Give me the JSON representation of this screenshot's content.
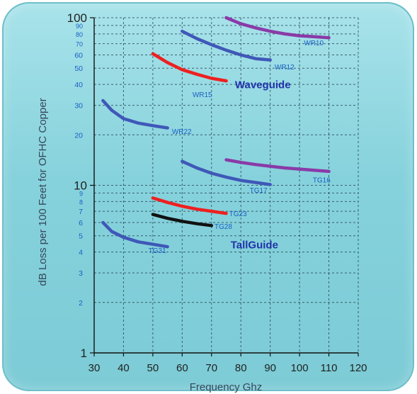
{
  "chart_data": {
    "type": "line",
    "title": "",
    "xlabel": "Frequency Ghz",
    "ylabel": "dB Loss per 100 Feet for OFHC Copper",
    "xlim": [
      30,
      120
    ],
    "ylim": [
      1,
      100
    ],
    "yscale": "log",
    "grid": true,
    "x_ticks": [
      "30",
      "40",
      "50",
      "60",
      "70",
      "80",
      "90",
      "100",
      "110",
      "120"
    ],
    "y_major_ticks": [
      "1",
      "10",
      "100"
    ],
    "y_minor_ticks": [
      "2",
      "3",
      "4",
      "5",
      "6",
      "7",
      "8",
      "9",
      "20",
      "30",
      "40",
      "50",
      "60",
      "70",
      "80",
      "90"
    ],
    "annotations": [
      "Waveguide",
      "TallGuide"
    ],
    "colors": {
      "blue": "#3f58b8",
      "red": "#ee2020",
      "purple": "#8a3aa8",
      "black": "#111111",
      "label_blue": "#1a5fc4",
      "section_label": "#2233aa",
      "grid": "#1e3a4a"
    },
    "series": [
      {
        "name": "WR10",
        "color": "purple",
        "x": [
          75,
          80,
          85,
          90,
          95,
          100,
          105,
          110
        ],
        "y": [
          100,
          92,
          87,
          83,
          80,
          78,
          77,
          76
        ]
      },
      {
        "name": "WR12",
        "color": "blue",
        "x": [
          60,
          65,
          70,
          75,
          80,
          85,
          90
        ],
        "y": [
          83,
          75,
          69,
          64,
          60,
          57,
          56
        ]
      },
      {
        "name": "WR15",
        "color": "red",
        "x": [
          50,
          55,
          60,
          65,
          70,
          75
        ],
        "y": [
          61,
          54,
          49,
          46,
          43.5,
          42
        ]
      },
      {
        "name": "WR22",
        "color": "blue",
        "x": [
          33,
          36,
          40,
          45,
          50,
          55
        ],
        "y": [
          32,
          28,
          25,
          23.5,
          22.7,
          22
        ]
      },
      {
        "name": "TG16",
        "color": "purple",
        "x": [
          75,
          80,
          85,
          90,
          95,
          100,
          105,
          110
        ],
        "y": [
          14.2,
          13.7,
          13.3,
          13,
          12.7,
          12.5,
          12.3,
          12.1
        ]
      },
      {
        "name": "TG17",
        "color": "blue",
        "x": [
          60,
          65,
          70,
          75,
          80,
          85,
          90
        ],
        "y": [
          13.9,
          12.7,
          11.8,
          11.2,
          10.7,
          10.4,
          10.1
        ]
      },
      {
        "name": "TG23",
        "color": "red",
        "x": [
          50,
          55,
          60,
          65,
          70,
          75
        ],
        "y": [
          8.4,
          7.9,
          7.5,
          7.2,
          7.0,
          6.8
        ]
      },
      {
        "name": "TG28",
        "color": "black",
        "x": [
          50,
          55,
          60,
          65,
          70
        ],
        "y": [
          6.7,
          6.35,
          6.1,
          5.9,
          5.75
        ]
      },
      {
        "name": "TG31",
        "color": "blue",
        "x": [
          33,
          36,
          40,
          45,
          50,
          55
        ],
        "y": [
          6.0,
          5.3,
          4.9,
          4.6,
          4.45,
          4.3
        ]
      }
    ],
    "series_labels": [
      {
        "text": "WR10",
        "x": 101.5,
        "y": 71,
        "anchor": "start"
      },
      {
        "text": "WR12",
        "x": 91.5,
        "y": 51,
        "anchor": "start"
      },
      {
        "text": "WR15",
        "x": 63.5,
        "y": 35,
        "anchor": "start"
      },
      {
        "text": "WR22",
        "x": 56.5,
        "y": 21.1,
        "anchor": "start"
      },
      {
        "text": "TG16",
        "x": 104.5,
        "y": 10.8,
        "anchor": "start"
      },
      {
        "text": "TG17",
        "x": 83,
        "y": 9.4,
        "anchor": "start"
      },
      {
        "text": "TG23",
        "x": 76,
        "y": 6.8,
        "anchor": "start"
      },
      {
        "text": "TG28",
        "x": 71,
        "y": 5.7,
        "anchor": "start"
      },
      {
        "text": "TG31",
        "x": 48.5,
        "y": 4.1,
        "anchor": "start"
      }
    ],
    "section_labels": [
      {
        "text": "Waveguide",
        "x": 78,
        "y": 38
      },
      {
        "text": "TallGuide",
        "x": 76.5,
        "y": 4.2
      }
    ]
  }
}
